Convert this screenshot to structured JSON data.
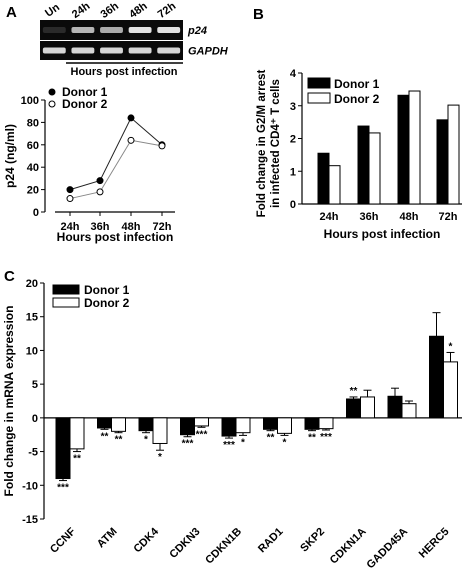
{
  "panel_labels": {
    "a": "A",
    "b": "B",
    "c": "C"
  },
  "gel": {
    "lanes": [
      "Un",
      "24h",
      "36h",
      "48h",
      "72h"
    ],
    "bands": [
      {
        "name": "p24",
        "intensity": [
          0.1,
          0.75,
          0.7,
          0.95,
          0.95
        ]
      },
      {
        "name": "GAPDH",
        "intensity": [
          0.9,
          0.9,
          0.9,
          0.9,
          0.9
        ]
      }
    ],
    "caption": "Hours post infection"
  },
  "chart_data": [
    {
      "type": "line",
      "ylabel": "p24 (ng/ml)",
      "xlabel": "Hours post infection",
      "categories": [
        "24h",
        "36h",
        "48h",
        "72h"
      ],
      "yticks": [
        "0",
        "20",
        "40",
        "60",
        "80",
        "100"
      ],
      "ylim": [
        0,
        100
      ],
      "series": [
        {
          "name": "Donor 1",
          "values": [
            20,
            28,
            84,
            60
          ],
          "marker": "filled"
        },
        {
          "name": "Donor 2",
          "values": [
            12,
            18,
            64,
            59
          ],
          "marker": "open"
        }
      ],
      "legend": "top-left"
    },
    {
      "type": "bar",
      "ylabel_lines": [
        "Fold change in G2/M arrest",
        "in infected CD4⁺ T cells"
      ],
      "xlabel": "Hours post infection",
      "categories": [
        "24h",
        "36h",
        "48h",
        "72h"
      ],
      "yticks": [
        "0",
        "1",
        "2",
        "3",
        "4"
      ],
      "ylim": [
        0,
        4
      ],
      "series": [
        {
          "name": "Donor 1",
          "values": [
            1.55,
            2.38,
            3.32,
            2.57
          ],
          "color": "#000000"
        },
        {
          "name": "Donor 2",
          "values": [
            1.17,
            2.17,
            3.45,
            3.02
          ],
          "color": "#ffffff"
        }
      ],
      "legend": "top-left"
    },
    {
      "type": "bar",
      "ylabel": "Fold change in mRNA expression",
      "categories": [
        "CCNF",
        "ATM",
        "CDK4",
        "CDKN3",
        "CDKN1B",
        "RAD1",
        "SKP2",
        "CDKN1A",
        "GADD45A",
        "HERC5"
      ],
      "yticks": [
        "-15",
        "-10",
        "-5",
        "0",
        "5",
        "10",
        "15",
        "20"
      ],
      "ylim": [
        -15,
        20
      ],
      "series": [
        {
          "name": "Donor 1",
          "values": [
            -9.0,
            -1.5,
            -1.9,
            -2.5,
            -2.7,
            -1.7,
            -1.7,
            2.8,
            3.2,
            12.1
          ],
          "errors": [
            0.3,
            0.2,
            0.3,
            0.3,
            0.3,
            0.2,
            0.2,
            0.3,
            1.2,
            3.5
          ],
          "color": "#000000",
          "stars": [
            "***",
            "**",
            "*",
            "***",
            "***",
            "**",
            "**",
            "**",
            "",
            ""
          ]
        },
        {
          "name": "Donor 2",
          "values": [
            -4.6,
            -2.0,
            -3.8,
            -1.2,
            -2.2,
            -2.3,
            -1.6,
            3.1,
            2.1,
            8.3
          ],
          "errors": [
            0.4,
            0.2,
            1.0,
            0.2,
            0.4,
            0.3,
            0.2,
            1.0,
            0.4,
            1.4
          ],
          "color": "#ffffff",
          "stars": [
            "**",
            "**",
            "*",
            "***",
            "*",
            "*",
            "***",
            "",
            "",
            "*"
          ]
        }
      ],
      "legend": "top-left"
    }
  ]
}
